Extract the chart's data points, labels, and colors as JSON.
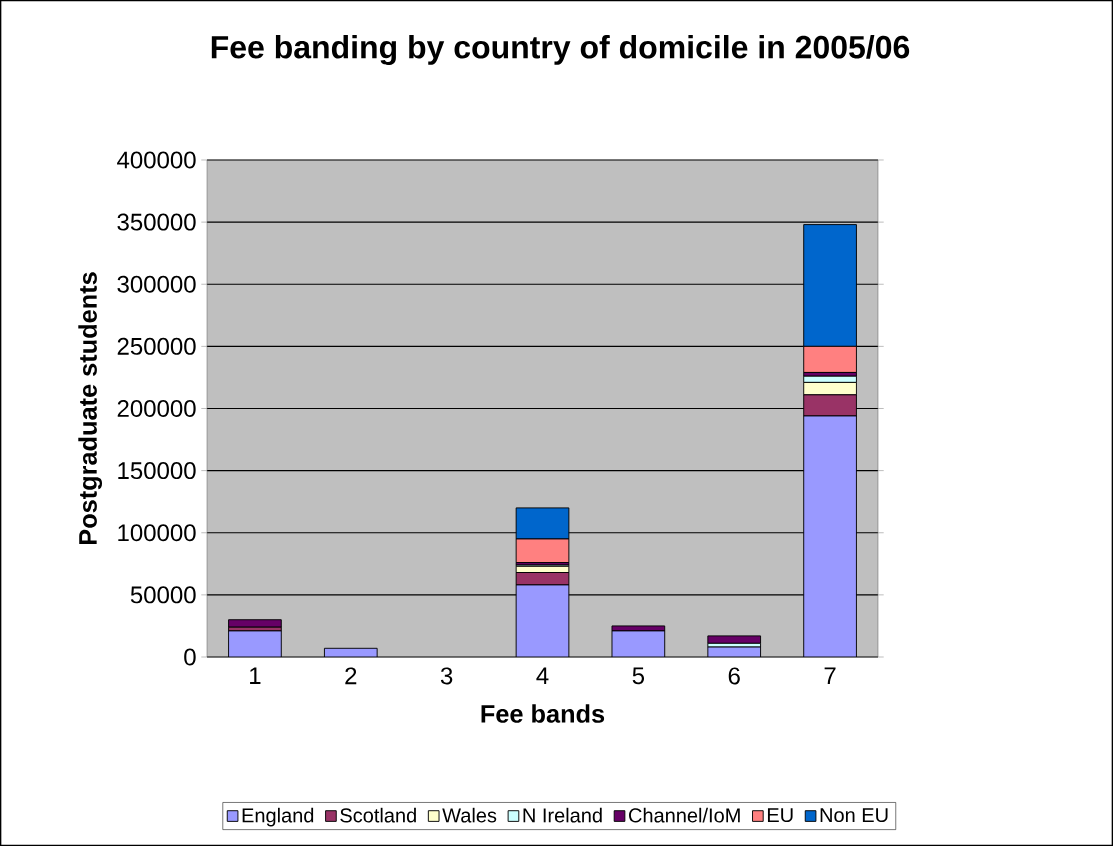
{
  "chart_data": {
    "type": "bar",
    "stacked": true,
    "title": "Fee banding by country of domicile in 2005/06",
    "xlabel": "Fee bands",
    "ylabel": "Postgraduate students",
    "categories": [
      "1",
      "2",
      "3",
      "4",
      "5",
      "6",
      "7"
    ],
    "series": [
      {
        "name": "England",
        "color": "#9999ff",
        "values": [
          21000,
          7000,
          0,
          58000,
          21000,
          8000,
          194000
        ]
      },
      {
        "name": "Scotland",
        "color": "#993366",
        "values": [
          3000,
          0,
          0,
          10000,
          0,
          0,
          17000
        ]
      },
      {
        "name": "Wales",
        "color": "#ffffcc",
        "values": [
          0,
          0,
          0,
          5000,
          0,
          0,
          10000
        ]
      },
      {
        "name": "N Ireland",
        "color": "#ccffff",
        "values": [
          0,
          0,
          0,
          1000,
          0,
          3000,
          5000
        ]
      },
      {
        "name": "Channel/IoM",
        "color": "#660066",
        "values": [
          6000,
          0,
          0,
          2000,
          4000,
          6000,
          3000
        ]
      },
      {
        "name": "EU",
        "color": "#ff8080",
        "values": [
          0,
          0,
          0,
          19000,
          0,
          0,
          21000
        ]
      },
      {
        "name": "Non EU",
        "color": "#0066cc",
        "values": [
          0,
          0,
          0,
          25000,
          0,
          0,
          98000
        ]
      }
    ],
    "ylim": [
      0,
      400000
    ],
    "yticks": [
      0,
      50000,
      100000,
      150000,
      200000,
      250000,
      300000,
      350000,
      400000
    ],
    "grid": "y",
    "legend": "bottom"
  }
}
